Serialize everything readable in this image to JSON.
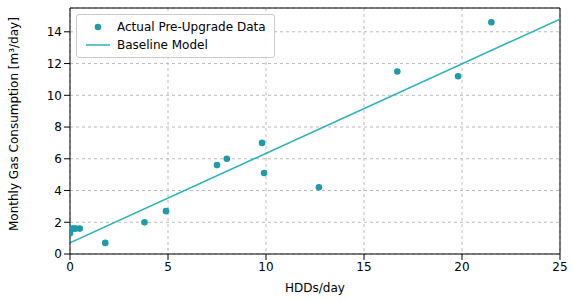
{
  "chart_data": {
    "type": "scatter",
    "x_label": "HDDs/day",
    "y_label": "Monthly Gas Consumption [m³/day]",
    "xlim": [
      0,
      25
    ],
    "ylim": [
      0,
      15.5
    ],
    "xticks": [
      0,
      5,
      10,
      15,
      20,
      25
    ],
    "yticks": [
      0,
      2,
      4,
      6,
      8,
      10,
      12,
      14
    ],
    "grid": true,
    "legend": "upper left",
    "series": [
      {
        "name": "Actual Pre-Upgrade Data",
        "type": "scatter",
        "marker": "circle",
        "color": "#1f9aa8",
        "x": [
          0,
          0.1,
          0.2,
          0.3,
          0.5,
          1.8,
          3.8,
          4.9,
          7.5,
          8.0,
          9.8,
          9.9,
          12.7,
          16.7,
          19.8,
          21.5
        ],
        "values": [
          1.3,
          1.6,
          1.6,
          1.6,
          1.6,
          0.7,
          2.0,
          2.7,
          5.6,
          6.0,
          7.0,
          5.1,
          4.2,
          11.5,
          11.2,
          14.6
        ]
      },
      {
        "name": "Baseline Model",
        "type": "line",
        "line_style": "solid",
        "color": "#2cb3bb",
        "x": [
          0,
          25
        ],
        "values": [
          0.7,
          14.8
        ]
      }
    ]
  }
}
